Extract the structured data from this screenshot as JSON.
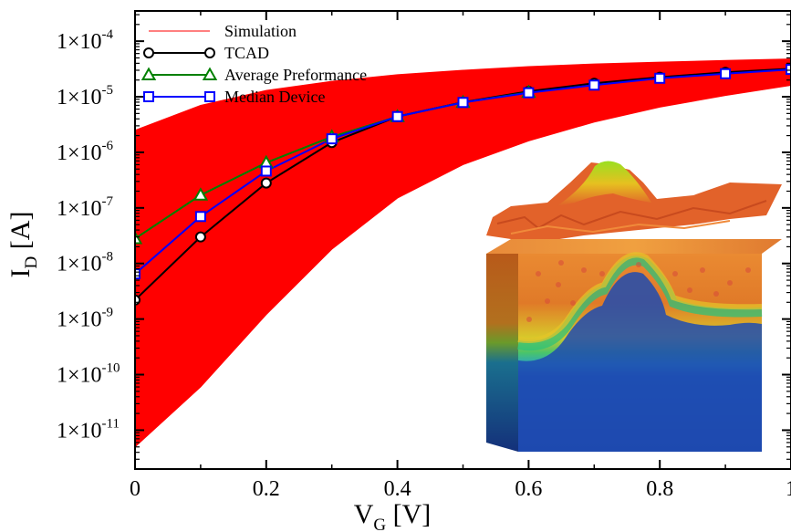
{
  "chart_data": {
    "type": "line",
    "xlabel": {
      "main": "V",
      "sub": "G",
      "rest": " [V]"
    },
    "ylabel": {
      "main": "I",
      "sub": "D",
      "rest": " [A]"
    },
    "x_scale": "linear",
    "y_scale": "log",
    "xlim": [
      0,
      1.0
    ],
    "ylim": [
      2e-12,
      0.00035
    ],
    "x_ticks": [
      {
        "value": 0,
        "label": "0"
      },
      {
        "value": 0.2,
        "label": "0.2"
      },
      {
        "value": 0.4,
        "label": "0.4"
      },
      {
        "value": 0.6,
        "label": "0.6"
      },
      {
        "value": 0.8,
        "label": "0.8"
      },
      {
        "value": 1.0,
        "label": "1"
      }
    ],
    "y_ticks": [
      {
        "value": 1e-11,
        "mantissa": "1×10",
        "exponent": "-11"
      },
      {
        "value": 1e-10,
        "mantissa": "1×10",
        "exponent": "-10"
      },
      {
        "value": 1e-09,
        "mantissa": "1×10",
        "exponent": "-9"
      },
      {
        "value": 1e-08,
        "mantissa": "1×10",
        "exponent": "-8"
      },
      {
        "value": 1e-07,
        "mantissa": "1×10",
        "exponent": "-7"
      },
      {
        "value": 1e-06,
        "mantissa": "1×10",
        "exponent": "-6"
      },
      {
        "value": 1e-05,
        "mantissa": "1×10",
        "exponent": "-5"
      },
      {
        "value": 0.0001,
        "mantissa": "1×10",
        "exponent": "-4"
      }
    ],
    "grid": false,
    "legend_position": "top-left",
    "series": [
      {
        "name": "Simulation",
        "color": "#ff0000",
        "marker": "none",
        "kind": "ensemble",
        "x": [
          0,
          0.1,
          0.2,
          0.3,
          0.4,
          0.5,
          0.6,
          0.7,
          0.8,
          0.9,
          1.0
        ],
        "upper_envelope": [
          2.5e-06,
          7e-06,
          1.3e-05,
          1.9e-05,
          2.5e-05,
          3e-05,
          3.5e-05,
          3.9e-05,
          4.2e-05,
          4.5e-05,
          4.8e-05
        ],
        "lower_envelope": [
          5e-12,
          6e-11,
          1.2e-09,
          1.8e-08,
          1.5e-07,
          6e-07,
          1.6e-06,
          3.5e-06,
          6.5e-06,
          1.05e-05,
          1.6e-05
        ]
      },
      {
        "name": "TCAD",
        "color": "#000000",
        "marker": "circle",
        "x": [
          0,
          0.1,
          0.2,
          0.3,
          0.4,
          0.5,
          0.6,
          0.7,
          0.8,
          0.9,
          1.0
        ],
        "y": [
          2.2e-09,
          3e-08,
          2.8e-07,
          1.5e-06,
          4.4e-06,
          8e-06,
          1.25e-05,
          1.75e-05,
          2.25e-05,
          2.75e-05,
          3.2e-05
        ]
      },
      {
        "name": "Average Preformance",
        "color": "#008000",
        "marker": "triangle",
        "x": [
          0,
          0.1,
          0.2,
          0.3,
          0.4,
          0.5,
          0.6
        ],
        "y": [
          2.8e-08,
          1.7e-07,
          6.5e-07,
          1.9e-06,
          4.4e-06,
          7.9e-06,
          1.2e-05
        ]
      },
      {
        "name": "Median Device",
        "color": "#0000ff",
        "marker": "square",
        "x": [
          0,
          0.1,
          0.2,
          0.3,
          0.4,
          0.5,
          0.6,
          0.7,
          0.8,
          0.9,
          1.0
        ],
        "y": [
          6.5e-09,
          7e-08,
          4.6e-07,
          1.75e-06,
          4.4e-06,
          7.9e-06,
          1.18e-05,
          1.62e-05,
          2.15e-05,
          2.6e-05,
          3.1e-05
        ]
      }
    ],
    "inset": {
      "description_icon": "device-potential-3d-render"
    }
  }
}
